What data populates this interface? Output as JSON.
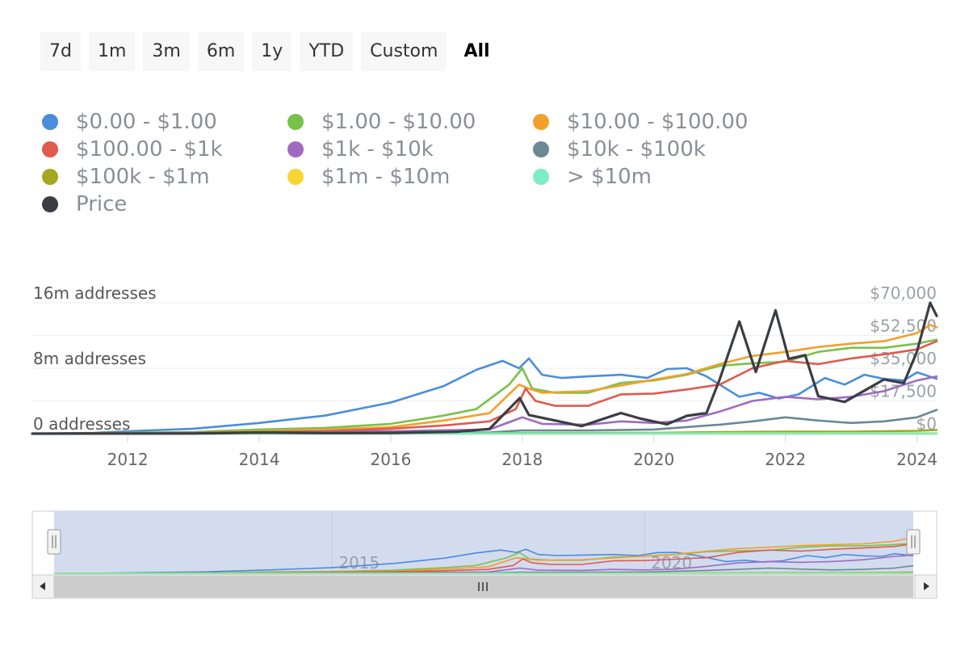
{
  "range_selector": {
    "buttons": [
      "7d",
      "1m",
      "3m",
      "6m",
      "1y",
      "YTD",
      "Custom",
      "All"
    ],
    "active": "All"
  },
  "colors": {
    "0-1": "#4a8ddc",
    "1-10": "#77c24a",
    "10-100": "#f2a02b",
    "100-1k": "#e05a4e",
    "1k-10k": "#a06ac0",
    "10k-100k": "#6b8894",
    "100k-1m": "#a3a820",
    "1m-10m": "#f7d534",
    "gt10m": "#7dedc8",
    "price": "#3a3e44"
  },
  "chart_data": {
    "type": "line",
    "legend_placement": "top",
    "y_left": {
      "ticks": [
        "0 addresses",
        "8m addresses",
        "16m addresses"
      ],
      "range": [
        0,
        16000000
      ]
    },
    "y_right": {
      "ticks": [
        "$0",
        "$17,500",
        "$35,000",
        "$52,500",
        "$70,000"
      ],
      "range": [
        0,
        70000
      ]
    },
    "x_ticks": [
      "2012",
      "2014",
      "2016",
      "2018",
      "2020",
      "2022",
      "2024"
    ],
    "x_range": [
      2010.55,
      2024.3
    ],
    "series": [
      {
        "key": "0-1",
        "name": "$0.00 - $1.00",
        "axis": "left",
        "points": [
          [
            2010.55,
            0
          ],
          [
            2011.5,
            100000
          ],
          [
            2012,
            300000
          ],
          [
            2013,
            600000
          ],
          [
            2014,
            1300000
          ],
          [
            2015,
            2200000
          ],
          [
            2016,
            3800000
          ],
          [
            2016.8,
            5800000
          ],
          [
            2017.3,
            7800000
          ],
          [
            2017.7,
            8900000
          ],
          [
            2017.95,
            8000000
          ],
          [
            2018.1,
            9200000
          ],
          [
            2018.3,
            7200000
          ],
          [
            2018.6,
            6800000
          ],
          [
            2019,
            7000000
          ],
          [
            2019.5,
            7200000
          ],
          [
            2019.9,
            6800000
          ],
          [
            2020.2,
            7900000
          ],
          [
            2020.5,
            8000000
          ],
          [
            2020.8,
            7000000
          ],
          [
            2021.1,
            5500000
          ],
          [
            2021.3,
            4500000
          ],
          [
            2021.6,
            5000000
          ],
          [
            2021.9,
            4300000
          ],
          [
            2022.2,
            4800000
          ],
          [
            2022.6,
            6800000
          ],
          [
            2022.9,
            6000000
          ],
          [
            2023.2,
            7200000
          ],
          [
            2023.5,
            6700000
          ],
          [
            2023.8,
            6500000
          ],
          [
            2024,
            7500000
          ],
          [
            2024.3,
            6700000
          ]
        ]
      },
      {
        "key": "1-10",
        "name": "$1.00 - $10.00",
        "axis": "left",
        "points": [
          [
            2010.55,
            0
          ],
          [
            2013,
            200000
          ],
          [
            2014,
            500000
          ],
          [
            2015,
            700000
          ],
          [
            2016,
            1200000
          ],
          [
            2016.8,
            2200000
          ],
          [
            2017.3,
            3000000
          ],
          [
            2017.8,
            6000000
          ],
          [
            2018,
            8000000
          ],
          [
            2018.15,
            5500000
          ],
          [
            2018.5,
            5000000
          ],
          [
            2019,
            5000000
          ],
          [
            2019.5,
            6200000
          ],
          [
            2020,
            6500000
          ],
          [
            2020.5,
            7200000
          ],
          [
            2021,
            8300000
          ],
          [
            2021.5,
            8600000
          ],
          [
            2022,
            8800000
          ],
          [
            2022.5,
            10000000
          ],
          [
            2023,
            10500000
          ],
          [
            2023.5,
            10500000
          ],
          [
            2024,
            11000000
          ],
          [
            2024.3,
            11500000
          ]
        ]
      },
      {
        "key": "10-100",
        "name": "$10.00 - $100.00",
        "axis": "left",
        "points": [
          [
            2010.55,
            0
          ],
          [
            2013,
            100000
          ],
          [
            2014,
            300000
          ],
          [
            2015,
            500000
          ],
          [
            2016,
            800000
          ],
          [
            2016.8,
            1600000
          ],
          [
            2017.5,
            2500000
          ],
          [
            2017.95,
            6000000
          ],
          [
            2018.1,
            5500000
          ],
          [
            2018.3,
            5000000
          ],
          [
            2019,
            5200000
          ],
          [
            2019.5,
            5900000
          ],
          [
            2020,
            6600000
          ],
          [
            2020.5,
            7300000
          ],
          [
            2021,
            8500000
          ],
          [
            2021.5,
            9500000
          ],
          [
            2022,
            10000000
          ],
          [
            2022.5,
            10600000
          ],
          [
            2023,
            11000000
          ],
          [
            2023.5,
            11300000
          ],
          [
            2024,
            12300000
          ],
          [
            2024.2,
            13300000
          ],
          [
            2024.3,
            13000000
          ]
        ]
      },
      {
        "key": "100-1k",
        "name": "$100.00 - $1k",
        "axis": "left",
        "points": [
          [
            2010.55,
            0
          ],
          [
            2013,
            100000
          ],
          [
            2014,
            200000
          ],
          [
            2015,
            300000
          ],
          [
            2016,
            600000
          ],
          [
            2016.8,
            1000000
          ],
          [
            2017.5,
            1500000
          ],
          [
            2017.9,
            3000000
          ],
          [
            2018.05,
            5500000
          ],
          [
            2018.2,
            4000000
          ],
          [
            2018.5,
            3400000
          ],
          [
            2019,
            3400000
          ],
          [
            2019.5,
            4800000
          ],
          [
            2020,
            4900000
          ],
          [
            2020.5,
            5400000
          ],
          [
            2021,
            6000000
          ],
          [
            2021.5,
            8000000
          ],
          [
            2022,
            8900000
          ],
          [
            2022.5,
            8500000
          ],
          [
            2023,
            9200000
          ],
          [
            2023.5,
            9700000
          ],
          [
            2024,
            10300000
          ],
          [
            2024.3,
            11300000
          ]
        ]
      },
      {
        "key": "1k-10k",
        "name": "$1k - $10k",
        "axis": "left",
        "points": [
          [
            2010.55,
            0
          ],
          [
            2014,
            100000
          ],
          [
            2016,
            300000
          ],
          [
            2017.5,
            500000
          ],
          [
            2018,
            2000000
          ],
          [
            2018.3,
            1200000
          ],
          [
            2019,
            1100000
          ],
          [
            2019.5,
            1500000
          ],
          [
            2020,
            1300000
          ],
          [
            2020.5,
            1600000
          ],
          [
            2021,
            2700000
          ],
          [
            2021.5,
            4000000
          ],
          [
            2022,
            4500000
          ],
          [
            2022.5,
            4200000
          ],
          [
            2023,
            4500000
          ],
          [
            2023.5,
            5200000
          ],
          [
            2024,
            6500000
          ],
          [
            2024.3,
            7000000
          ]
        ]
      },
      {
        "key": "10k-100k",
        "name": "$10k - $100k",
        "axis": "left",
        "points": [
          [
            2010.55,
            0
          ],
          [
            2016,
            50000
          ],
          [
            2017.5,
            150000
          ],
          [
            2018,
            400000
          ],
          [
            2019,
            400000
          ],
          [
            2020,
            500000
          ],
          [
            2021,
            1100000
          ],
          [
            2021.5,
            1500000
          ],
          [
            2022,
            2000000
          ],
          [
            2022.5,
            1600000
          ],
          [
            2023,
            1300000
          ],
          [
            2023.5,
            1500000
          ],
          [
            2024,
            2000000
          ],
          [
            2024.3,
            2900000
          ]
        ]
      },
      {
        "key": "100k-1m",
        "name": "$100k - $1m",
        "axis": "left",
        "points": [
          [
            2010.55,
            0
          ],
          [
            2017,
            20000
          ],
          [
            2018,
            80000
          ],
          [
            2020,
            100000
          ],
          [
            2021,
            200000
          ],
          [
            2022,
            250000
          ],
          [
            2023,
            250000
          ],
          [
            2024,
            350000
          ],
          [
            2024.3,
            450000
          ]
        ]
      },
      {
        "key": "1m-10m",
        "name": "$1m - $10m",
        "axis": "left",
        "points": [
          [
            2010.55,
            0
          ],
          [
            2018,
            10000
          ],
          [
            2021,
            40000
          ],
          [
            2024.3,
            60000
          ]
        ]
      },
      {
        "key": "gt10m",
        "name": "> $10m",
        "axis": "left",
        "points": [
          [
            2010.55,
            0
          ],
          [
            2021,
            5000
          ],
          [
            2024.3,
            10000
          ]
        ]
      },
      {
        "key": "price",
        "name": "Price",
        "axis": "right",
        "points": [
          [
            2010.55,
            0
          ],
          [
            2013,
            100
          ],
          [
            2014,
            600
          ],
          [
            2015,
            300
          ],
          [
            2016,
            400
          ],
          [
            2017,
            1000
          ],
          [
            2017.5,
            2500
          ],
          [
            2017.96,
            19000
          ],
          [
            2018.1,
            10000
          ],
          [
            2018.5,
            7000
          ],
          [
            2018.9,
            4000
          ],
          [
            2019.5,
            11000
          ],
          [
            2019.8,
            8000
          ],
          [
            2020.2,
            5000
          ],
          [
            2020.5,
            9500
          ],
          [
            2020.8,
            11000
          ],
          [
            2021,
            29000
          ],
          [
            2021.3,
            60000
          ],
          [
            2021.55,
            33000
          ],
          [
            2021.85,
            66000
          ],
          [
            2022.05,
            40000
          ],
          [
            2022.3,
            42000
          ],
          [
            2022.5,
            20000
          ],
          [
            2022.9,
            17000
          ],
          [
            2023.2,
            23000
          ],
          [
            2023.5,
            29000
          ],
          [
            2023.8,
            27000
          ],
          [
            2024,
            44000
          ],
          [
            2024.2,
            70000
          ],
          [
            2024.3,
            63000
          ]
        ]
      }
    ],
    "navigator": {
      "x_ticks": [
        "2015",
        "2020"
      ]
    }
  }
}
